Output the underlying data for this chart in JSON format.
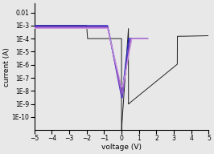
{
  "xlim": [
    -5,
    5
  ],
  "ylim_log": [
    1e-11,
    0.05
  ],
  "yticks": [
    0.01,
    0.001,
    0.0001,
    1e-05,
    1e-06,
    1e-07,
    1e-08,
    1e-09,
    1e-10
  ],
  "ytick_labels": [
    "0.01",
    "1E-3",
    "1E-4",
    "1E-5",
    "1E-6",
    "1E-7",
    "1E-8",
    "1E-9",
    "1E-10"
  ],
  "xlabel": "voltage (V)",
  "ylabel": "current (A)",
  "bg_color": "#e8e8e8",
  "black_color": "#222222",
  "curve_colors": [
    "#2222bb",
    "#4433cc",
    "#7744bb",
    "#aa66cc",
    "#cc99dd"
  ],
  "figsize": [
    2.66,
    1.92
  ],
  "dpi": 100
}
